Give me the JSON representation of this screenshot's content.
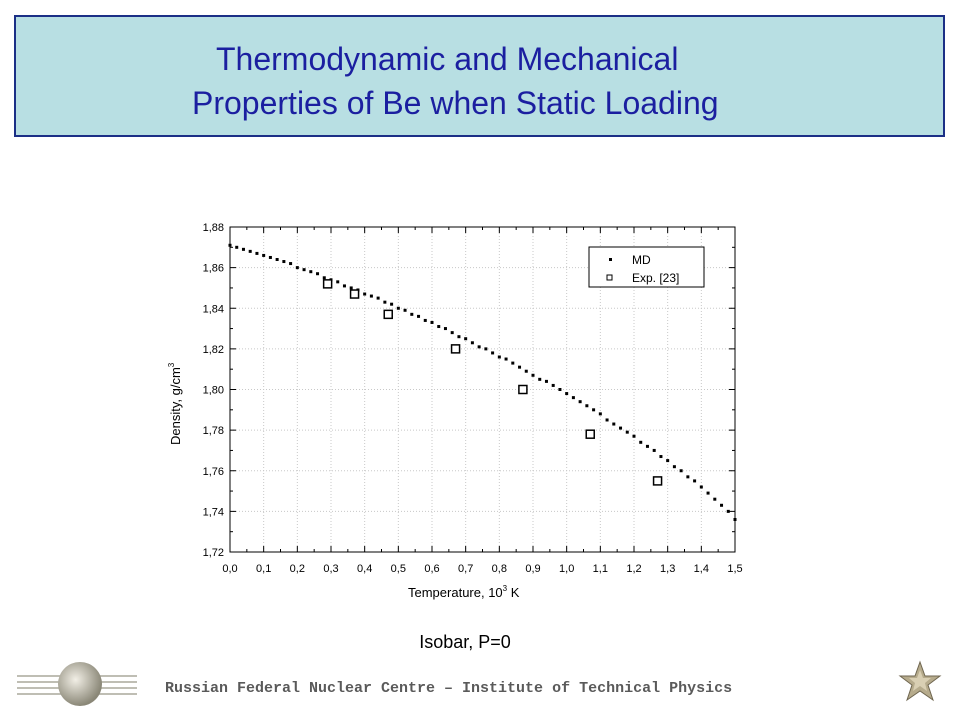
{
  "title": {
    "line1": "Thermodynamic and Mechanical",
    "line2": "Properties of Be when Static Loading"
  },
  "caption": "Isobar, P=0",
  "footer": "Russian Federal Nuclear Centre – Institute of Technical Physics",
  "colors": {
    "title_bg": "#b8dfe3",
    "title_border": "#1b2f86",
    "title_text": "#1b1fa0"
  },
  "chart_data": {
    "type": "scatter",
    "title": "",
    "xlabel": "Temperature, 10",
    "xlabel_sup": "3",
    "xlabel_unit": " K",
    "ylabel": "Density, g/cm",
    "ylabel_sup": "3",
    "xlim": [
      0.0,
      1.5
    ],
    "ylim": [
      1.72,
      1.88
    ],
    "xticks": [
      "0,0",
      "0,1",
      "0,2",
      "0,3",
      "0,4",
      "0,5",
      "0,6",
      "0,7",
      "0,8",
      "0,9",
      "1,0",
      "1,1",
      "1,2",
      "1,3",
      "1,4",
      "1,5"
    ],
    "yticks": [
      "1,72",
      "1,74",
      "1,76",
      "1,78",
      "1,80",
      "1,82",
      "1,84",
      "1,86",
      "1,88"
    ],
    "grid": true,
    "legend_position": "top-right",
    "series": [
      {
        "name": "MD",
        "marker": "dot",
        "x": [
          0.0,
          0.02,
          0.04,
          0.06,
          0.08,
          0.1,
          0.12,
          0.14,
          0.16,
          0.18,
          0.2,
          0.22,
          0.24,
          0.26,
          0.28,
          0.3,
          0.32,
          0.34,
          0.36,
          0.38,
          0.4,
          0.42,
          0.44,
          0.46,
          0.48,
          0.5,
          0.52,
          0.54,
          0.56,
          0.58,
          0.6,
          0.62,
          0.64,
          0.66,
          0.68,
          0.7,
          0.72,
          0.74,
          0.76,
          0.78,
          0.8,
          0.82,
          0.84,
          0.86,
          0.88,
          0.9,
          0.92,
          0.94,
          0.96,
          0.98,
          1.0,
          1.02,
          1.04,
          1.06,
          1.08,
          1.1,
          1.12,
          1.14,
          1.16,
          1.18,
          1.2,
          1.22,
          1.24,
          1.26,
          1.28,
          1.3,
          1.32,
          1.34,
          1.36,
          1.38,
          1.4,
          1.42,
          1.44,
          1.46,
          1.48,
          1.5
        ],
        "y": [
          1.871,
          1.87,
          1.869,
          1.868,
          1.867,
          1.866,
          1.865,
          1.864,
          1.863,
          1.862,
          1.86,
          1.859,
          1.858,
          1.857,
          1.855,
          1.854,
          1.853,
          1.851,
          1.85,
          1.849,
          1.847,
          1.846,
          1.845,
          1.843,
          1.842,
          1.84,
          1.839,
          1.837,
          1.836,
          1.834,
          1.833,
          1.831,
          1.83,
          1.828,
          1.826,
          1.825,
          1.823,
          1.821,
          1.82,
          1.818,
          1.816,
          1.815,
          1.813,
          1.811,
          1.809,
          1.807,
          1.805,
          1.804,
          1.802,
          1.8,
          1.798,
          1.796,
          1.794,
          1.792,
          1.79,
          1.788,
          1.785,
          1.783,
          1.781,
          1.779,
          1.777,
          1.774,
          1.772,
          1.77,
          1.767,
          1.765,
          1.762,
          1.76,
          1.757,
          1.755,
          1.752,
          1.749,
          1.746,
          1.743,
          1.74,
          1.736
        ]
      },
      {
        "name": "Exp. [23]",
        "marker": "square",
        "x": [
          0.29,
          0.37,
          0.47,
          0.67,
          0.87,
          1.07,
          1.27
        ],
        "y": [
          1.852,
          1.847,
          1.837,
          1.82,
          1.8,
          1.778,
          1.755
        ]
      }
    ]
  }
}
